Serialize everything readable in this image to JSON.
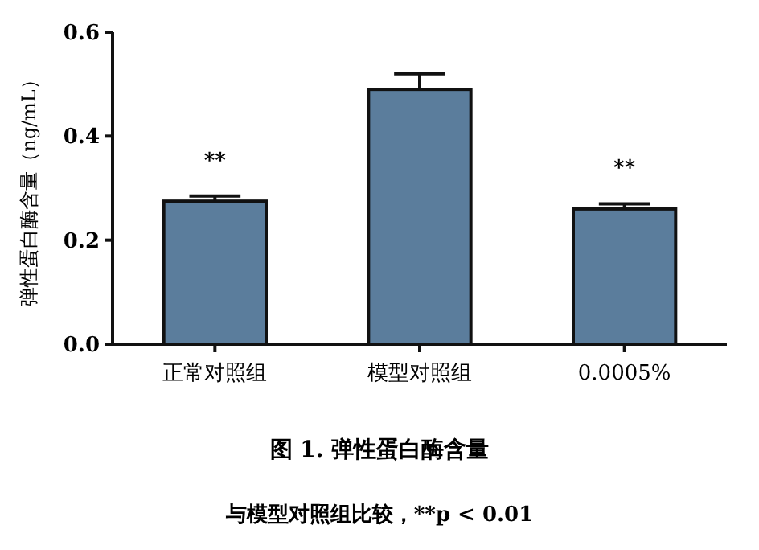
{
  "chart_data": {
    "type": "bar",
    "title": "图 1. 弹性蛋白酶含量",
    "subtitle": "与模型对照组比较，**p < 0.01",
    "ylabel": "弹性蛋白酶含量（ng/mL）",
    "categories": [
      "正常对照组",
      "模型对照组",
      "0.0005%"
    ],
    "values": [
      0.275,
      0.49,
      0.26
    ],
    "errors": [
      0.01,
      0.03,
      0.01
    ],
    "color": "#5b7d9c",
    "ylim": [
      0,
      0.6
    ],
    "yticks": [
      {
        "value": 0,
        "label": "0.0"
      },
      {
        "value": 0.2,
        "label": "0.2"
      },
      {
        "value": 0.4,
        "label": "0.4"
      },
      {
        "value": 0.6,
        "label": "0.6"
      }
    ],
    "annotations": [
      {
        "text": "**",
        "x": "正常对照组",
        "y": 0.285
      },
      {
        "text": "**",
        "x": "0.0005%",
        "y": 0.27
      }
    ]
  }
}
